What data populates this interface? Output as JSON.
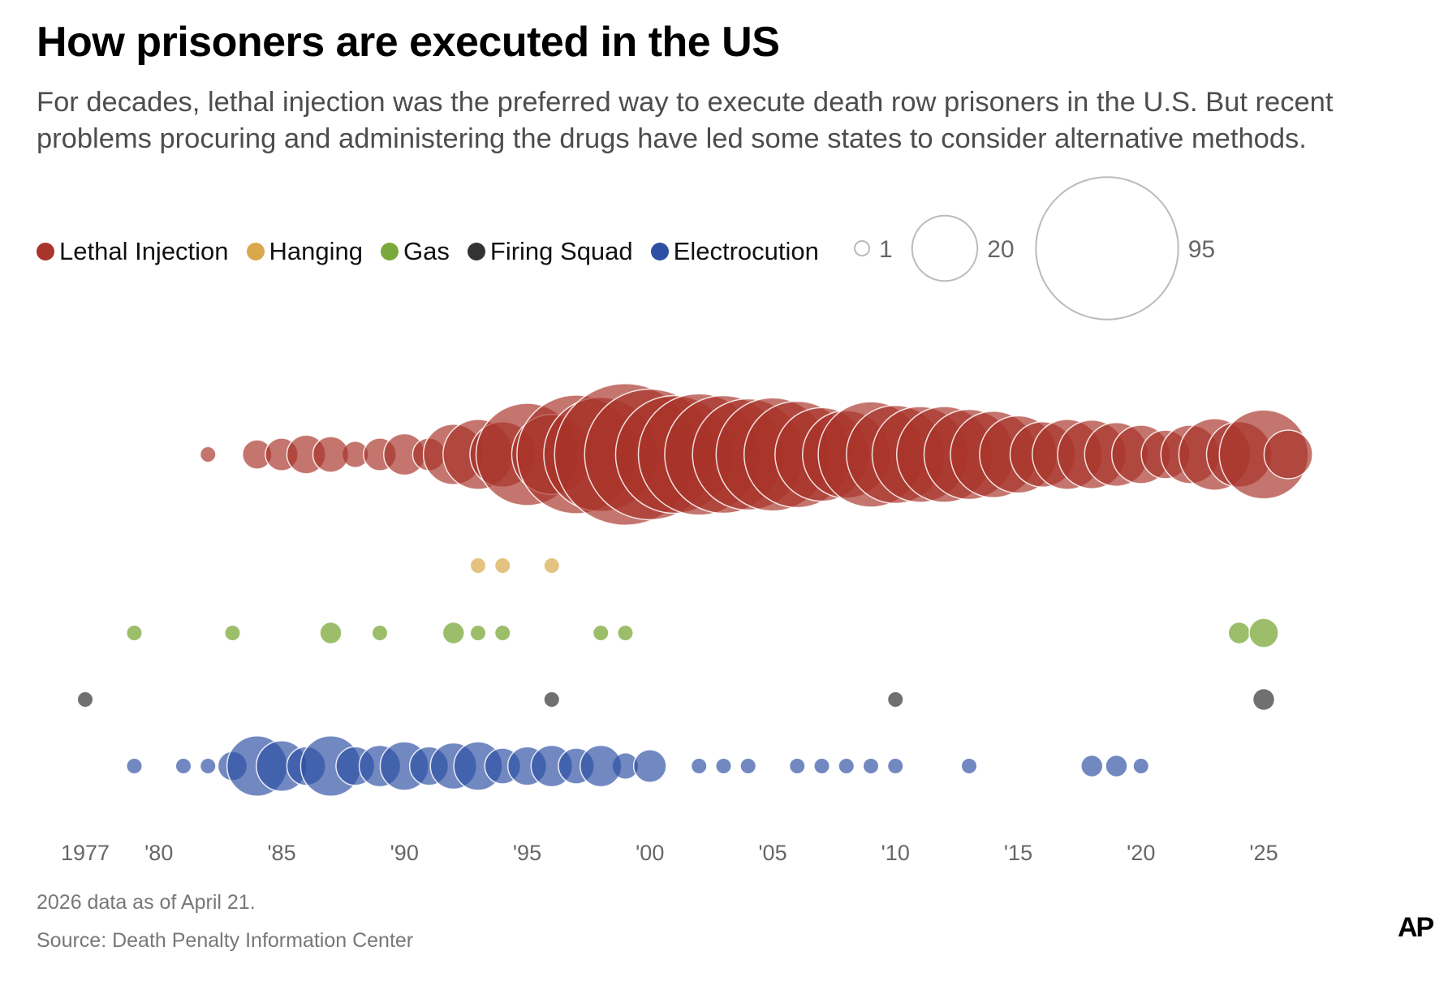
{
  "header": {
    "title": "How prisoners are executed in the US",
    "subtitle": "For decades, lethal injection was the preferred way to execute death row prisoners in the U.S. But recent problems procuring and administering the drugs have led some states to consider alternative methods."
  },
  "footer": {
    "note": "2026 data as of April 21.",
    "source": "Source: Death Penalty Information Center",
    "logo": "AP"
  },
  "chart_data": {
    "type": "scatter",
    "subtype": "bubble-timeline",
    "title": "How prisoners are executed in the US",
    "xlabel": "",
    "ylabel": "",
    "x_range": [
      1977,
      2026
    ],
    "x_ticks": [
      1977,
      1980,
      1985,
      1990,
      1995,
      2000,
      2005,
      2010,
      2015,
      2020,
      2025
    ],
    "x_tick_labels": [
      "1977",
      "'80",
      "'85",
      "'90",
      "'95",
      "'00",
      "'05",
      "'10",
      "'15",
      "'20",
      "'25"
    ],
    "size_encoding": "number of executions (area)",
    "size_legend": [
      {
        "value": 1,
        "label": "1"
      },
      {
        "value": 20,
        "label": "20"
      },
      {
        "value": 95,
        "label": "95"
      }
    ],
    "legend_position": "top-left",
    "grid": false,
    "series": [
      {
        "name": "Lethal Injection",
        "color": "#a8342a",
        "points": [
          {
            "year": 1982,
            "value": 1
          },
          {
            "year": 1984,
            "value": 4
          },
          {
            "year": 1985,
            "value": 5
          },
          {
            "year": 1986,
            "value": 7
          },
          {
            "year": 1987,
            "value": 6
          },
          {
            "year": 1988,
            "value": 3
          },
          {
            "year": 1989,
            "value": 5
          },
          {
            "year": 1990,
            "value": 8
          },
          {
            "year": 1991,
            "value": 5
          },
          {
            "year": 1992,
            "value": 17
          },
          {
            "year": 1993,
            "value": 23
          },
          {
            "year": 1994,
            "value": 20
          },
          {
            "year": 1995,
            "value": 49
          },
          {
            "year": 1996,
            "value": 30
          },
          {
            "year": 1997,
            "value": 66
          },
          {
            "year": 1998,
            "value": 61
          },
          {
            "year": 1999,
            "value": 94
          },
          {
            "year": 2000,
            "value": 80
          },
          {
            "year": 2001,
            "value": 65
          },
          {
            "year": 2002,
            "value": 69
          },
          {
            "year": 2003,
            "value": 65
          },
          {
            "year": 2004,
            "value": 58
          },
          {
            "year": 2005,
            "value": 60
          },
          {
            "year": 2006,
            "value": 53
          },
          {
            "year": 2007,
            "value": 41
          },
          {
            "year": 2008,
            "value": 36
          },
          {
            "year": 2009,
            "value": 52
          },
          {
            "year": 2010,
            "value": 45
          },
          {
            "year": 2011,
            "value": 43
          },
          {
            "year": 2012,
            "value": 43
          },
          {
            "year": 2013,
            "value": 38
          },
          {
            "year": 2014,
            "value": 35
          },
          {
            "year": 2015,
            "value": 28
          },
          {
            "year": 2016,
            "value": 20
          },
          {
            "year": 2017,
            "value": 23
          },
          {
            "year": 2018,
            "value": 22
          },
          {
            "year": 2019,
            "value": 19
          },
          {
            "year": 2020,
            "value": 16
          },
          {
            "year": 2021,
            "value": 11
          },
          {
            "year": 2022,
            "value": 16
          },
          {
            "year": 2023,
            "value": 24
          },
          {
            "year": 2024,
            "value": 20
          },
          {
            "year": 2025,
            "value": 37
          },
          {
            "year": 2026,
            "value": 11
          }
        ]
      },
      {
        "name": "Hanging",
        "color": "#d9a84c",
        "points": [
          {
            "year": 1993,
            "value": 1
          },
          {
            "year": 1994,
            "value": 1
          },
          {
            "year": 1996,
            "value": 1
          }
        ]
      },
      {
        "name": "Gas",
        "color": "#7ba83a",
        "points": [
          {
            "year": 1979,
            "value": 1
          },
          {
            "year": 1983,
            "value": 1
          },
          {
            "year": 1987,
            "value": 2
          },
          {
            "year": 1989,
            "value": 1
          },
          {
            "year": 1992,
            "value": 2
          },
          {
            "year": 1993,
            "value": 1
          },
          {
            "year": 1994,
            "value": 1
          },
          {
            "year": 1998,
            "value": 1
          },
          {
            "year": 1999,
            "value": 1
          },
          {
            "year": 2024,
            "value": 2
          },
          {
            "year": 2025,
            "value": 4
          }
        ]
      },
      {
        "name": "Firing Squad",
        "color": "#333333",
        "points": [
          {
            "year": 1977,
            "value": 1
          },
          {
            "year": 1996,
            "value": 1
          },
          {
            "year": 2010,
            "value": 1
          },
          {
            "year": 2025,
            "value": 2
          }
        ]
      },
      {
        "name": "Electrocution",
        "color": "#2e4fa3",
        "points": [
          {
            "year": 1979,
            "value": 1
          },
          {
            "year": 1981,
            "value": 1
          },
          {
            "year": 1982,
            "value": 1
          },
          {
            "year": 1983,
            "value": 4
          },
          {
            "year": 1984,
            "value": 17
          },
          {
            "year": 1985,
            "value": 12
          },
          {
            "year": 1986,
            "value": 7
          },
          {
            "year": 1987,
            "value": 17
          },
          {
            "year": 1988,
            "value": 7
          },
          {
            "year": 1989,
            "value": 8
          },
          {
            "year": 1990,
            "value": 11
          },
          {
            "year": 1991,
            "value": 7
          },
          {
            "year": 1992,
            "value": 10
          },
          {
            "year": 1993,
            "value": 11
          },
          {
            "year": 1994,
            "value": 6
          },
          {
            "year": 1995,
            "value": 7
          },
          {
            "year": 1996,
            "value": 8
          },
          {
            "year": 1997,
            "value": 6
          },
          {
            "year": 1998,
            "value": 8
          },
          {
            "year": 1999,
            "value": 3
          },
          {
            "year": 2000,
            "value": 5
          },
          {
            "year": 2002,
            "value": 1
          },
          {
            "year": 2003,
            "value": 1
          },
          {
            "year": 2004,
            "value": 1
          },
          {
            "year": 2006,
            "value": 1
          },
          {
            "year": 2007,
            "value": 1
          },
          {
            "year": 2008,
            "value": 1
          },
          {
            "year": 2009,
            "value": 1
          },
          {
            "year": 2010,
            "value": 1
          },
          {
            "year": 2013,
            "value": 1
          },
          {
            "year": 2018,
            "value": 2
          },
          {
            "year": 2019,
            "value": 2
          },
          {
            "year": 2020,
            "value": 1
          }
        ]
      }
    ]
  }
}
